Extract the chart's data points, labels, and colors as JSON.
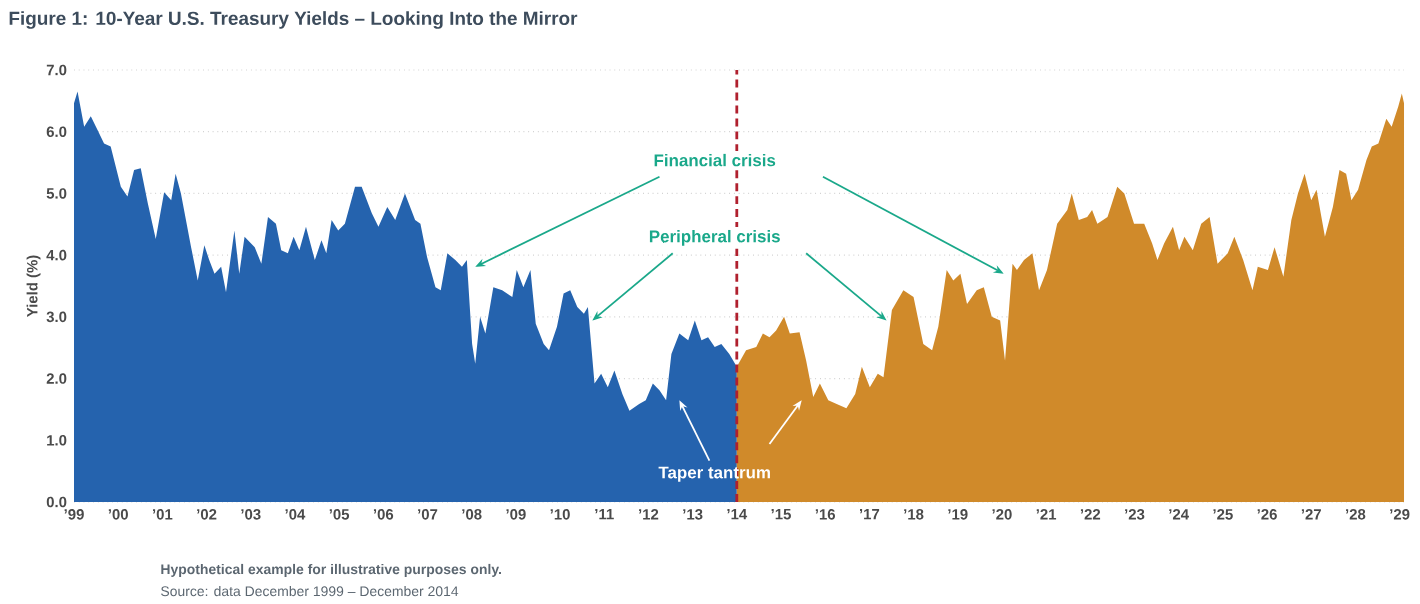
{
  "chart_data": {
    "type": "area",
    "title": "Figure 1: 10-Year U.S. Treasury Yields – Looking Into the Mirror",
    "ylabel": "Yield (%)",
    "xlim": [
      1999,
      2029.1
    ],
    "ylim": [
      0,
      7
    ],
    "xticks": [
      {
        "value": 1999,
        "label": "’99"
      },
      {
        "value": 2000,
        "label": "’00"
      },
      {
        "value": 2001,
        "label": "’01"
      },
      {
        "value": 2002,
        "label": "’02"
      },
      {
        "value": 2003,
        "label": "’03"
      },
      {
        "value": 2004,
        "label": "’04"
      },
      {
        "value": 2005,
        "label": "’05"
      },
      {
        "value": 2006,
        "label": "’06"
      },
      {
        "value": 2007,
        "label": "’07"
      },
      {
        "value": 2008,
        "label": "’08"
      },
      {
        "value": 2009,
        "label": "’09"
      },
      {
        "value": 2010,
        "label": "’10"
      },
      {
        "value": 2011,
        "label": "’11"
      },
      {
        "value": 2012,
        "label": "’12"
      },
      {
        "value": 2013,
        "label": "’13"
      },
      {
        "value": 2014,
        "label": "’14"
      },
      {
        "value": 2015,
        "label": "’15"
      },
      {
        "value": 2016,
        "label": "’16"
      },
      {
        "value": 2017,
        "label": "’17"
      },
      {
        "value": 2018,
        "label": "’18"
      },
      {
        "value": 2019,
        "label": "’19"
      },
      {
        "value": 2020,
        "label": "’20"
      },
      {
        "value": 2021,
        "label": "’21"
      },
      {
        "value": 2022,
        "label": "’22"
      },
      {
        "value": 2023,
        "label": "’23"
      },
      {
        "value": 2024,
        "label": "’24"
      },
      {
        "value": 2025,
        "label": "’25"
      },
      {
        "value": 2026,
        "label": "’26"
      },
      {
        "value": 2027,
        "label": "’27"
      },
      {
        "value": 2028,
        "label": "’28"
      },
      {
        "value": 2029,
        "label": "’29"
      }
    ],
    "yticks": [
      {
        "value": 0,
        "label": "0.0"
      },
      {
        "value": 1,
        "label": "1.0"
      },
      {
        "value": 2,
        "label": "2.0"
      },
      {
        "value": 3,
        "label": "3.0"
      },
      {
        "value": 4,
        "label": "4.0"
      },
      {
        "value": 5,
        "label": "5.0"
      },
      {
        "value": 6,
        "label": "6.0"
      },
      {
        "value": 7,
        "label": "7.0"
      }
    ],
    "grid": "y",
    "series": [
      {
        "color": "#2563ae",
        "x": [
          1999.0,
          1999.08,
          1999.23,
          1999.38,
          1999.53,
          1999.68,
          1999.83,
          2000.06,
          2000.21,
          2000.36,
          2000.51,
          2000.67,
          2000.85,
          2001.04,
          2001.2,
          2001.3,
          2001.42,
          2001.65,
          2001.8,
          2001.95,
          2002.06,
          2002.18,
          2002.33,
          2002.44,
          2002.63,
          2002.74,
          2002.86,
          2003.09,
          2003.24,
          2003.39,
          2003.57,
          2003.69,
          2003.84,
          2003.97,
          2004.1,
          2004.25,
          2004.45,
          2004.6,
          2004.71,
          2004.83,
          2004.98,
          2005.13,
          2005.36,
          2005.51,
          2005.74,
          2005.89,
          2006.09,
          2006.27,
          2006.49,
          2006.72,
          2006.84,
          2006.99,
          2007.18,
          2007.3,
          2007.45,
          2007.63,
          2007.78,
          2007.89,
          2008.01,
          2008.08,
          2008.19,
          2008.31,
          2008.49,
          2008.69,
          2008.92,
          2009.02,
          2009.17,
          2009.33,
          2009.45,
          2009.63,
          2009.75,
          2009.93,
          2010.08,
          2010.23,
          2010.39,
          2010.54,
          2010.63,
          2010.78,
          2010.93,
          2011.08,
          2011.23,
          2011.41,
          2011.57,
          2011.79,
          2011.94,
          2012.1,
          2012.25,
          2012.4,
          2012.52,
          2012.7,
          2012.9,
          2013.05,
          2013.2,
          2013.35,
          2013.5,
          2013.65,
          2013.83,
          2014.0
        ],
        "values": [
          6.46,
          6.65,
          6.08,
          6.25,
          6.03,
          5.81,
          5.76,
          5.11,
          4.95,
          5.38,
          5.41,
          4.84,
          4.26,
          5.02,
          4.89,
          5.32,
          5.0,
          4.13,
          3.59,
          4.16,
          3.92,
          3.7,
          3.81,
          3.4,
          4.4,
          3.7,
          4.3,
          4.13,
          3.86,
          4.62,
          4.51,
          4.08,
          4.03,
          4.3,
          4.08,
          4.46,
          3.92,
          4.24,
          4.03,
          4.57,
          4.4,
          4.51,
          5.11,
          5.11,
          4.68,
          4.46,
          4.78,
          4.57,
          5.0,
          4.57,
          4.51,
          3.97,
          3.48,
          3.43,
          4.03,
          3.92,
          3.81,
          3.92,
          2.56,
          2.24,
          3.0,
          2.73,
          3.48,
          3.43,
          3.32,
          3.76,
          3.48,
          3.76,
          2.89,
          2.56,
          2.46,
          2.84,
          3.38,
          3.43,
          3.16,
          3.05,
          3.16,
          1.92,
          2.08,
          1.86,
          2.13,
          1.75,
          1.48,
          1.59,
          1.65,
          1.92,
          1.81,
          1.65,
          2.4,
          2.73,
          2.62,
          2.94,
          2.62,
          2.67,
          2.51,
          2.56,
          2.4,
          2.19
        ]
      },
      {
        "color": "#d08a2a",
        "x": [
          2014.0,
          2014.21,
          2014.44,
          2014.59,
          2014.74,
          2014.89,
          2015.07,
          2015.2,
          2015.42,
          2015.57,
          2015.73,
          2015.88,
          2016.07,
          2016.26,
          2016.48,
          2016.68,
          2016.83,
          2017.01,
          2017.19,
          2017.32,
          2017.51,
          2017.77,
          2018.0,
          2018.22,
          2018.42,
          2018.56,
          2018.75,
          2018.9,
          2019.06,
          2019.21,
          2019.43,
          2019.59,
          2019.77,
          2019.96,
          2020.07,
          2020.24,
          2020.34,
          2020.5,
          2020.69,
          2020.84,
          2021.02,
          2021.25,
          2021.48,
          2021.58,
          2021.74,
          2021.93,
          2022.04,
          2022.16,
          2022.39,
          2022.61,
          2022.77,
          2022.99,
          2023.22,
          2023.4,
          2023.52,
          2023.67,
          2023.87,
          2024.01,
          2024.13,
          2024.32,
          2024.51,
          2024.7,
          2024.88,
          2025.11,
          2025.26,
          2025.46,
          2025.67,
          2025.79,
          2026.02,
          2026.17,
          2026.37,
          2026.55,
          2026.7,
          2026.85,
          2027.0,
          2027.12,
          2027.31,
          2027.49,
          2027.64,
          2027.79,
          2027.91,
          2028.06,
          2028.25,
          2028.37,
          2028.52,
          2028.7,
          2028.82,
          2028.97,
          2029.05,
          2029.1
        ],
        "values": [
          2.19,
          2.46,
          2.51,
          2.73,
          2.67,
          2.78,
          3.0,
          2.73,
          2.75,
          2.29,
          1.7,
          1.92,
          1.65,
          1.59,
          1.52,
          1.75,
          2.19,
          1.86,
          2.08,
          2.02,
          3.11,
          3.43,
          3.32,
          2.56,
          2.46,
          2.84,
          3.76,
          3.59,
          3.7,
          3.21,
          3.43,
          3.48,
          3.0,
          2.94,
          2.29,
          3.86,
          3.76,
          3.92,
          4.03,
          3.43,
          3.76,
          4.51,
          4.73,
          5.0,
          4.57,
          4.62,
          4.73,
          4.51,
          4.62,
          5.11,
          5.0,
          4.51,
          4.51,
          4.19,
          3.92,
          4.19,
          4.46,
          4.08,
          4.3,
          4.08,
          4.51,
          4.62,
          3.86,
          4.03,
          4.3,
          3.92,
          3.43,
          3.81,
          3.76,
          4.13,
          3.65,
          4.57,
          5.0,
          5.32,
          4.89,
          5.06,
          4.3,
          4.78,
          5.38,
          5.32,
          4.89,
          5.06,
          5.54,
          5.76,
          5.81,
          6.21,
          6.08,
          6.41,
          6.62,
          6.46
        ]
      }
    ],
    "ref_lines": [
      {
        "axis": "x",
        "value": 2014,
        "color": "#b0202e",
        "line_style": "dashed"
      }
    ],
    "annotations": [
      {
        "text": "Financial crisis",
        "x": 2008.08,
        "y": 3.81
      },
      {
        "text": "Peripheral crisis",
        "x": 2010.73,
        "y": 2.94
      },
      "Taper tantrum",
      "Hypothetical example for illustrative purposes only.",
      "Source: data December 1999 – December 2014"
    ]
  }
}
